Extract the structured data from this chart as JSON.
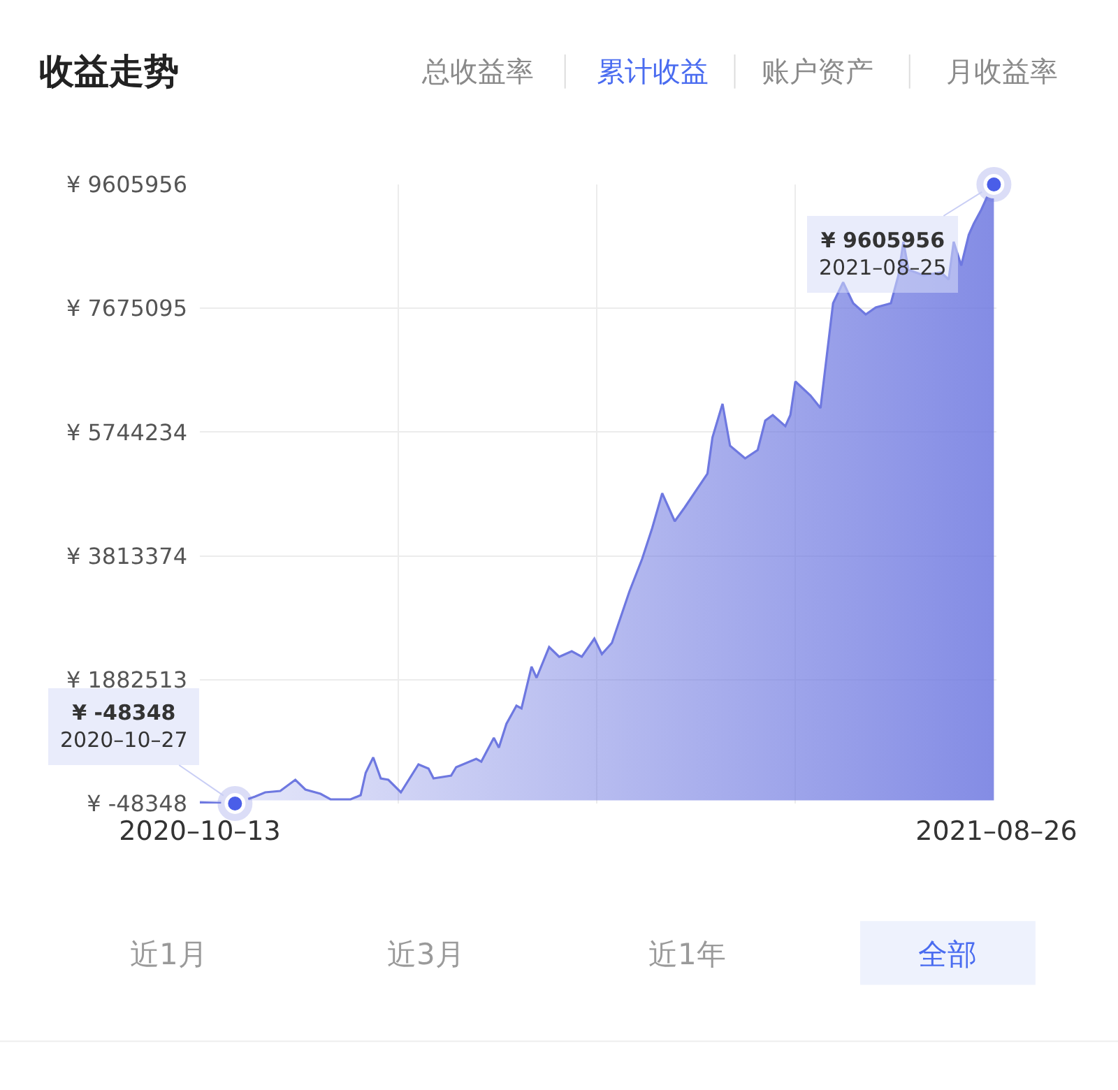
{
  "chart_data": {
    "type": "area",
    "title": "收益走势",
    "x": [
      "2020-10-13",
      "2020-10-27",
      "2020-11-04",
      "2020-11-08",
      "2020-11-14",
      "2020-11-20",
      "2020-11-24",
      "2020-11-30",
      "2020-12-04",
      "2020-12-12",
      "2020-12-16",
      "2020-12-18",
      "2020-12-21",
      "2020-12-24",
      "2020-12-27",
      "2021-01-01",
      "2021-01-08",
      "2021-01-12",
      "2021-01-14",
      "2021-01-21",
      "2021-01-23",
      "2021-01-31",
      "2021-02-02",
      "2021-02-07",
      "2021-02-09",
      "2021-02-12",
      "2021-02-16",
      "2021-02-18",
      "2021-02-22",
      "2021-02-24",
      "2021-03-01",
      "2021-03-05",
      "2021-03-10",
      "2021-03-14",
      "2021-03-19",
      "2021-03-22",
      "2021-03-26",
      "2021-04-02",
      "2021-04-07",
      "2021-04-11",
      "2021-04-15",
      "2021-04-20",
      "2021-04-24",
      "2021-05-03",
      "2021-05-05",
      "2021-05-09",
      "2021-05-12",
      "2021-05-18",
      "2021-05-23",
      "2021-05-26",
      "2021-05-29",
      "2021-06-03",
      "2021-06-05",
      "2021-06-07",
      "2021-06-13",
      "2021-06-17",
      "2021-06-22",
      "2021-06-26",
      "2021-06-30",
      "2021-07-05",
      "2021-07-09",
      "2021-07-15",
      "2021-07-18",
      "2021-07-20",
      "2021-07-22",
      "2021-07-28",
      "2021-08-04",
      "2021-08-07",
      "2021-08-09",
      "2021-08-12",
      "2021-08-15",
      "2021-08-17",
      "2021-08-20",
      "2021-08-22",
      "2021-08-25"
    ],
    "series": [
      {
        "color": "#6e78e0",
        "values": [
          -30000,
          -48348,
          60000,
          126000,
          148000,
          322000,
          170000,
          104000,
          17000,
          17000,
          82000,
          431000,
          671000,
          344000,
          322000,
          126000,
          562000,
          497000,
          344000,
          388000,
          519000,
          649000,
          605000,
          976000,
          823000,
          1194000,
          1477000,
          1434000,
          2087000,
          1913000,
          2392000,
          2240000,
          2327000,
          2240000,
          2523000,
          2283000,
          2458000,
          3264000,
          3765000,
          4245000,
          4790000,
          4354000,
          4572000,
          5095000,
          5661000,
          6184000,
          5531000,
          5335000,
          5465000,
          5923000,
          6010000,
          5836000,
          6010000,
          6533000,
          6315000,
          6119000,
          7754000,
          8080000,
          7754000,
          7579000,
          7688000,
          7754000,
          8189000,
          8712000,
          8277000,
          8189000,
          8233000,
          8124000,
          8712000,
          8342000,
          8821000,
          8996000,
          9214000,
          9388000,
          9605956
        ]
      }
    ],
    "xlim": [
      "2020-10-13",
      "2021-08-26"
    ],
    "xticks": [
      {
        "value": "2020-10-13",
        "label": "2020–10–13"
      },
      {
        "value": "2020-12-31",
        "label": null
      },
      {
        "value": "2021-03-20",
        "label": null
      },
      {
        "value": "2021-06-07",
        "label": null
      },
      {
        "value": "2021-08-26",
        "label": "2021–08–26"
      }
    ],
    "ylim": [
      -48348,
      9605956
    ],
    "yticks": [
      {
        "value": -48348,
        "label": "¥ -48348"
      },
      {
        "value": 1882513,
        "label": "¥ 1882513"
      },
      {
        "value": 3813374,
        "label": "¥ 3813374"
      },
      {
        "value": 5744234,
        "label": "¥ 5744234"
      },
      {
        "value": 7675095,
        "label": "¥ 7675095"
      },
      {
        "value": 9605956,
        "label": "¥ 9605956"
      }
    ],
    "grid": true,
    "marker": "none",
    "line_style": "solid",
    "annotations": [
      {
        "text": "¥ 9605956\n2021–08–25",
        "x": "2021-08-25",
        "y": 9605956
      },
      {
        "text": "¥ -48348\n2020–10–27",
        "x": "2020-10-27",
        "y": -48348
      },
      "总收益率",
      "累计收益",
      "账户资产",
      "月收益率",
      "近1月",
      "近3月",
      "近1年",
      "全部"
    ]
  }
}
